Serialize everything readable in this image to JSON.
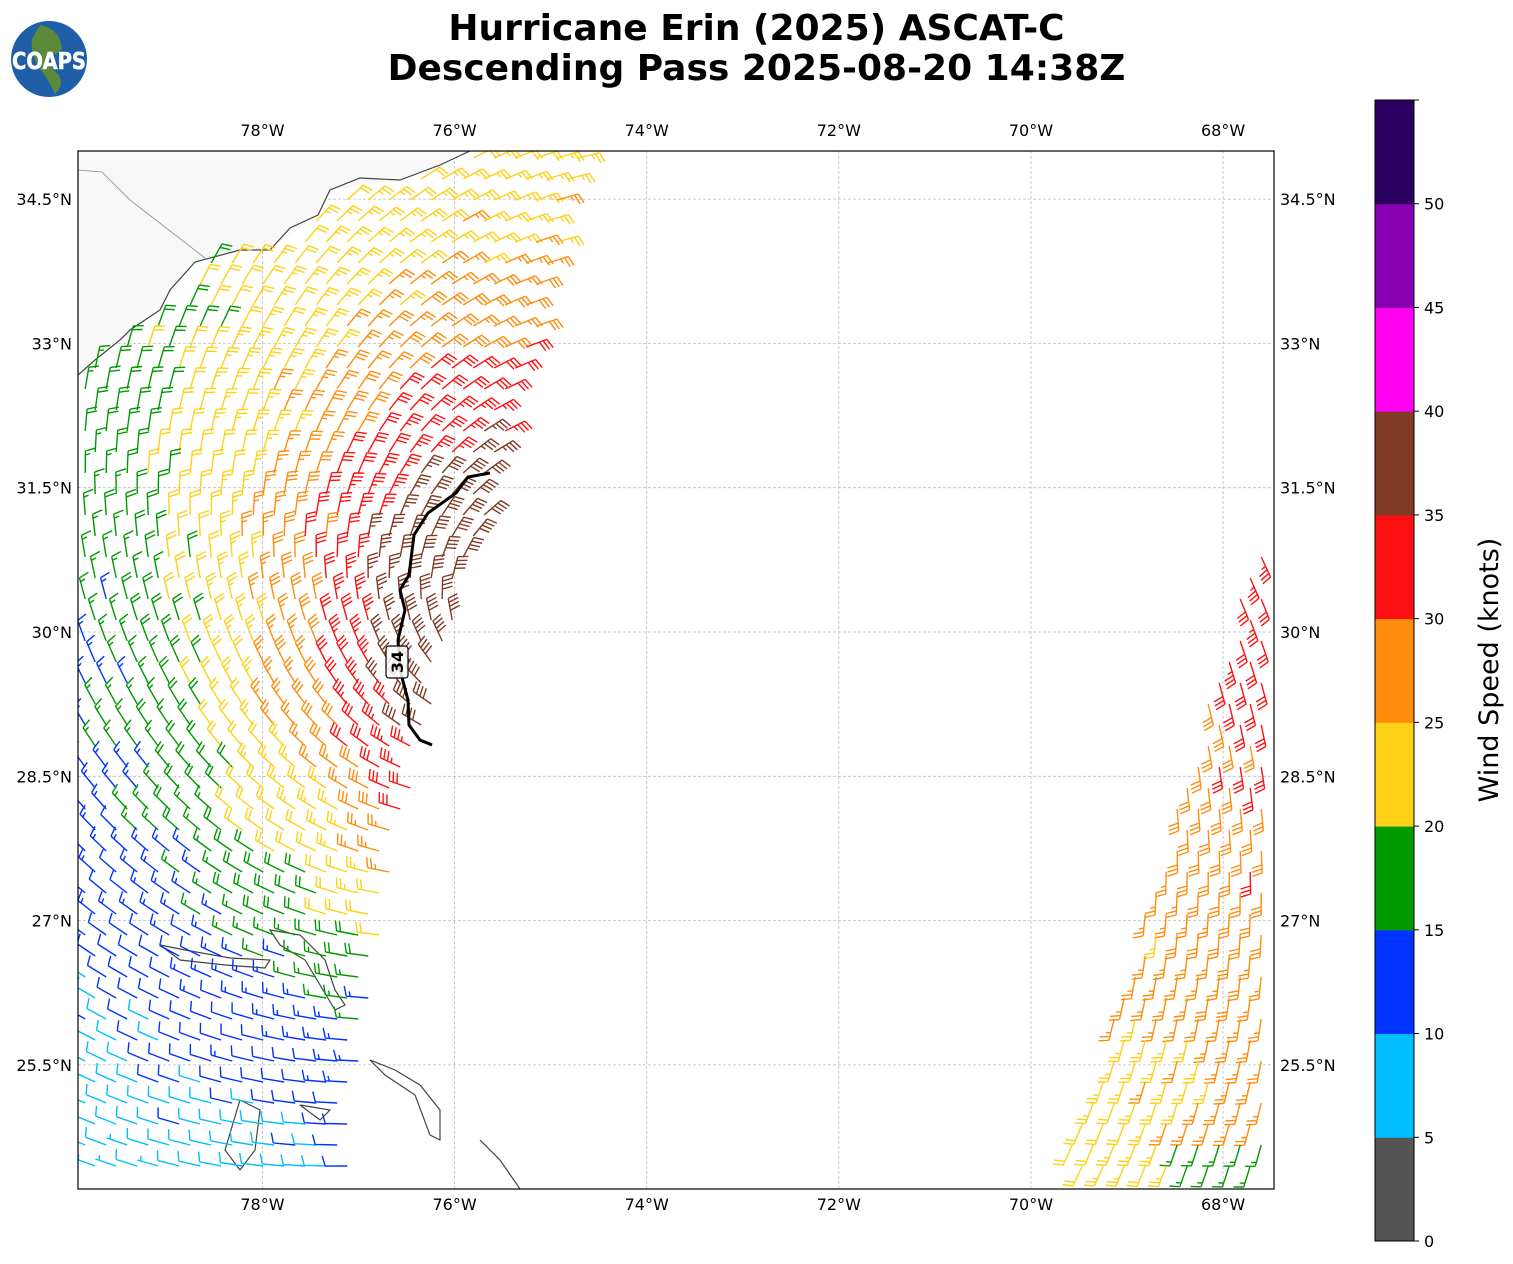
{
  "header": {
    "title_line1": "Hurricane Erin (2025) ASCAT-C",
    "title_line2": "Descending Pass 2025-08-20 14:38Z",
    "logo_text": "COAPS"
  },
  "map": {
    "lon_ticks": [
      {
        "value": -78,
        "label": "78°W"
      },
      {
        "value": -76,
        "label": "76°W"
      },
      {
        "value": -74,
        "label": "74°W"
      },
      {
        "value": -72,
        "label": "72°W"
      },
      {
        "value": -70,
        "label": "70°W"
      },
      {
        "value": -68,
        "label": "68°W"
      }
    ],
    "lat_ticks": [
      {
        "value": 34.5,
        "label": "34.5°N"
      },
      {
        "value": 33,
        "label": "33°N"
      },
      {
        "value": 31.5,
        "label": "31.5°N"
      },
      {
        "value": 30,
        "label": "30°N"
      },
      {
        "value": 28.5,
        "label": "28.5°N"
      },
      {
        "value": 27,
        "label": "27°N"
      },
      {
        "value": 25.5,
        "label": "25.5°N"
      }
    ],
    "extent": {
      "lon_min": -79.92,
      "lon_max": -67.47,
      "lat_min": 24.21,
      "lat_max": 35.0
    },
    "contour_label": "34"
  },
  "colorbar": {
    "label": "Wind Speed (knots)",
    "ticks": [
      "0",
      "5",
      "10",
      "15",
      "20",
      "25",
      "30",
      "35",
      "40",
      "45",
      "50"
    ],
    "bins": [
      {
        "min": 0,
        "max": 5,
        "color": "#555555"
      },
      {
        "min": 5,
        "max": 10,
        "color": "#00bfff"
      },
      {
        "min": 10,
        "max": 15,
        "color": "#0033ff"
      },
      {
        "min": 15,
        "max": 20,
        "color": "#009900"
      },
      {
        "min": 20,
        "max": 25,
        "color": "#fcd116"
      },
      {
        "min": 25,
        "max": 30,
        "color": "#ff8c0a"
      },
      {
        "min": 30,
        "max": 35,
        "color": "#ff1010"
      },
      {
        "min": 35,
        "max": 40,
        "color": "#7f3b25"
      },
      {
        "min": 40,
        "max": 45,
        "color": "#ff00f0"
      },
      {
        "min": 45,
        "max": 50,
        "color": "#8800b0"
      },
      {
        "min": 50,
        "max": 55,
        "color": "#2a0060"
      }
    ]
  }
}
